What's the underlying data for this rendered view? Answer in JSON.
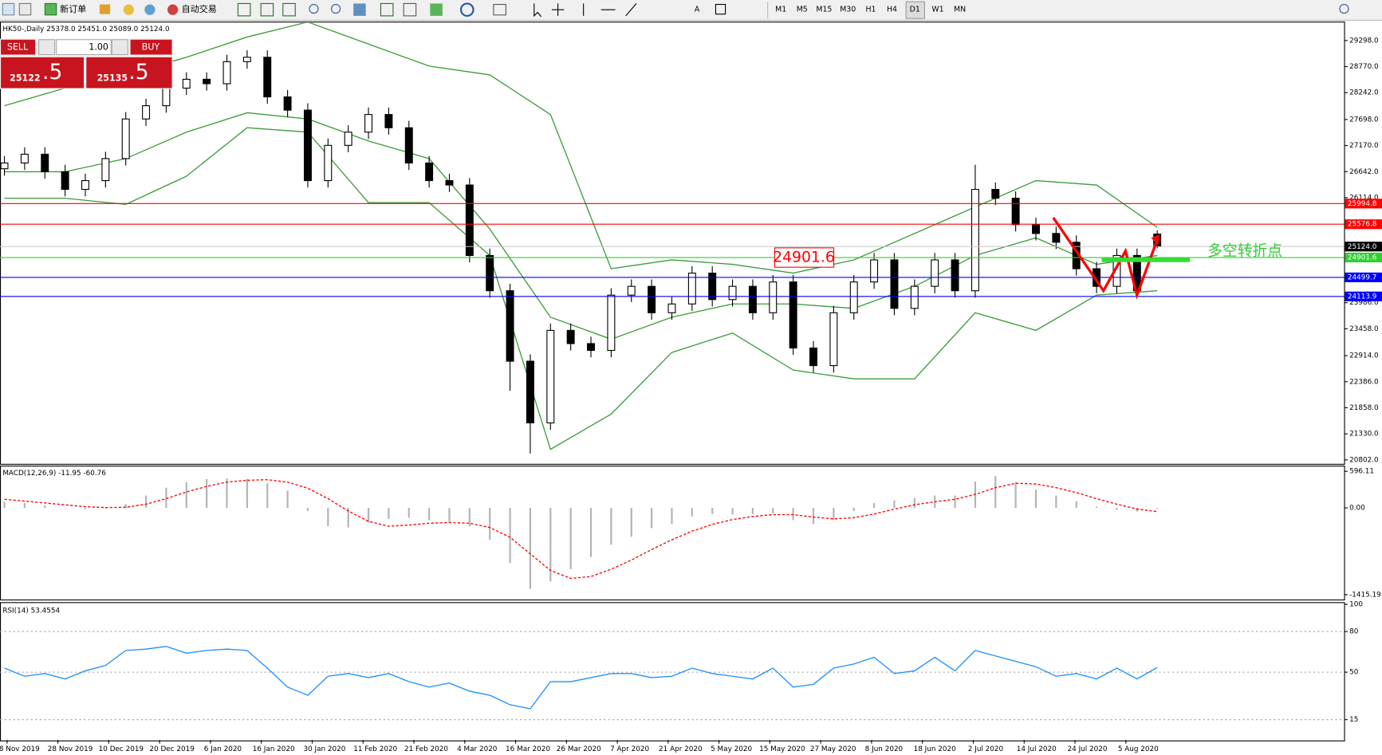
{
  "toolbar": {
    "new_order": "新订单",
    "auto_trading": "自动交易",
    "timeframes": [
      "M1",
      "M5",
      "M15",
      "M30",
      "H1",
      "H4",
      "D1",
      "W1",
      "MN"
    ]
  },
  "trade_panel": {
    "sell": {
      "label": "SELL",
      "big": 25122,
      "small": ".5"
    },
    "lot": "1.00",
    "buy": {
      "label": "BUY",
      "big": 25135,
      "small": ".5"
    }
  },
  "chart_data": [
    {
      "type": "candlestick",
      "title": "HK50-,Daily  25378.0 25451.0 25089.0 25124.0",
      "open": [
        26700,
        26817,
        26995,
        26639,
        26282,
        26460,
        26906,
        27709,
        27977,
        28334,
        28513,
        28423,
        28870,
        28959,
        28156,
        27888,
        26460,
        27174,
        27442,
        27799,
        27531,
        26817,
        26460,
        26371,
        24943,
        24229,
        22801,
        21552,
        23426,
        23158,
        23020,
        24140,
        24318,
        23783,
        23961,
        24586,
        24050,
        24318,
        23783,
        24407,
        23069,
        22712,
        23783,
        24407,
        24854,
        23872,
        24318,
        24854,
        24229,
        26282,
        26103,
        25568,
        25389,
        25211,
        24675,
        24318,
        24943,
        25378
      ],
      "high": [
        26957,
        27135,
        27135,
        26779,
        26600,
        27046,
        27849,
        28117,
        28474,
        28653,
        28653,
        29010,
        29099,
        29099,
        28296,
        28028,
        27314,
        27582,
        27939,
        27939,
        27671,
        26957,
        26600,
        26511,
        25083,
        24369,
        22941,
        23566,
        23566,
        23298,
        24280,
        24458,
        24458,
        24101,
        24726,
        24726,
        24458,
        24458,
        24547,
        24547,
        23209,
        23923,
        24547,
        24994,
        24994,
        24458,
        24994,
        24994,
        26781,
        26422,
        26243,
        25708,
        25529,
        25351,
        24815,
        25083,
        25083,
        25451
      ],
      "low": [
        26560,
        26677,
        26499,
        26142,
        26142,
        26320,
        26766,
        27569,
        27837,
        28194,
        28283,
        28283,
        28730,
        28016,
        27748,
        26320,
        26320,
        27034,
        27302,
        27391,
        26677,
        26320,
        26231,
        24803,
        24089,
        22200,
        20930,
        21412,
        23018,
        22880,
        22880,
        24000,
        23643,
        23643,
        23821,
        23910,
        23910,
        23643,
        23643,
        22929,
        22572,
        22572,
        23643,
        24267,
        23732,
        23732,
        24178,
        24089,
        24089,
        25963,
        25428,
        25249,
        25071,
        24535,
        24178,
        24178,
        24089,
        25089
      ],
      "close": [
        26817,
        26995,
        26639,
        26282,
        26460,
        26906,
        27709,
        27977,
        28334,
        28513,
        28423,
        28870,
        28959,
        28156,
        27888,
        26460,
        27174,
        27442,
        27799,
        27531,
        26817,
        26460,
        26371,
        24943,
        24229,
        22801,
        21552,
        23426,
        23158,
        23020,
        24140,
        24318,
        23783,
        23961,
        24586,
        24050,
        24318,
        23783,
        24407,
        23069,
        22712,
        23783,
        24407,
        24854,
        23872,
        24318,
        24854,
        24229,
        26282,
        26103,
        25568,
        25389,
        25211,
        24675,
        24318,
        24943,
        24229,
        25124
      ],
      "overlays": [
        {
          "color": "#3c9b3c",
          "values": [
            27977,
            28334,
            28602,
            28959,
            29369,
            29673,
            29227,
            28780,
            28602,
            27799,
            24675,
            24854,
            24764,
            24586,
            24854,
            25389,
            25925,
            26460,
            26371,
            25514
          ]
        },
        {
          "color": "#3c9b3c",
          "values": [
            26639,
            26639,
            26906,
            27442,
            27834,
            27709,
            27263,
            26906,
            25478,
            23693,
            23247,
            23693,
            23961,
            23961,
            23872,
            24318,
            24943,
            25300,
            24764,
            24943
          ]
        },
        {
          "color": "#3c9b3c",
          "values": [
            26103,
            26103,
            25978,
            26549,
            27531,
            27442,
            26014,
            26014,
            24943,
            21016,
            21730,
            22979,
            23372,
            22622,
            22444,
            22444,
            23783,
            23426,
            24140,
            24229
          ]
        }
      ],
      "hlines": [
        {
          "value": 25994.8,
          "color": "#ff0000"
        },
        {
          "value": 25576.8,
          "color": "#ff0000"
        },
        {
          "value": 25124.0,
          "label": "25124.0",
          "color": "#000000",
          "line_color": "#c8c8c8"
        },
        {
          "value": 24901.6,
          "color": "#32cd32"
        },
        {
          "value": 24499.7,
          "color": "#0000ff"
        },
        {
          "value": 24113.9,
          "color": "#0000ff"
        }
      ],
      "annotation": "多空转折点",
      "ylim": [
        20731,
        29655
      ],
      "yticks": [
        {
          "value": 29298,
          "label": "29298.0"
        },
        {
          "value": 28770,
          "label": "28770.0"
        },
        {
          "value": 28242,
          "label": "28242.0"
        },
        {
          "value": 27698,
          "label": "27698.0"
        },
        {
          "value": 27170,
          "label": "27170.0"
        },
        {
          "value": 26642,
          "label": "26642.0"
        },
        {
          "value": 26114,
          "label": "26114.0"
        },
        {
          "value": 23986,
          "label": "23986.0"
        },
        {
          "value": 23458,
          "label": "23458.0"
        },
        {
          "value": 22914,
          "label": "22914.0"
        },
        {
          "value": 22386,
          "label": "22386.0"
        },
        {
          "value": 21858,
          "label": "21858.0"
        },
        {
          "value": 21330,
          "label": "21330.0"
        },
        {
          "value": 20802,
          "label": "20802.0"
        }
      ],
      "xtick_labels": [
        "8 Nov 2019",
        "28 Nov 2019",
        "10 Dec 2019",
        "20 Dec 2019",
        "6 Jan 2020",
        "16 Jan 2020",
        "30 Jan 2020",
        "11 Feb 2020",
        "21 Feb 2020",
        "4 Mar 2020",
        "16 Mar 2020",
        "26 Mar 2020",
        "7 Apr 2020",
        "21 Apr 2020",
        "5 May 2020",
        "15 May 2020",
        "27 May 2020",
        "8 Jun 2020",
        "18 Jun 2020",
        "2 Jul 2020",
        "14 Jul 2020",
        "24 Jul 2020",
        "5 Aug 2020"
      ]
    },
    {
      "type": "macd",
      "title": "MACD(12,26,9) -11.95 -60.76",
      "series": [
        {
          "color": "#b4b4b4",
          "values": [
            100,
            80,
            40,
            0,
            -20,
            -10,
            60,
            200,
            330,
            420,
            470,
            480,
            470,
            400,
            280,
            -50,
            -300,
            -320,
            -240,
            -180,
            -160,
            -200,
            -230,
            -300,
            -520,
            -900,
            -1320,
            -1200,
            -1000,
            -800,
            -600,
            -470,
            -330,
            -260,
            -140,
            -100,
            -110,
            -100,
            -90,
            -200,
            -260,
            -200,
            -50,
            80,
            120,
            160,
            200,
            200,
            430,
            520,
            420,
            300,
            200,
            110,
            20,
            -30,
            -60,
            -11.95
          ]
        },
        {
          "color": "#ff0000",
          "values": [
            140,
            110,
            80,
            50,
            20,
            5,
            10,
            60,
            150,
            260,
            350,
            420,
            450,
            460,
            420,
            320,
            150,
            -50,
            -220,
            -300,
            -280,
            -250,
            -240,
            -250,
            -320,
            -480,
            -750,
            -1020,
            -1150,
            -1120,
            -1000,
            -850,
            -680,
            -520,
            -380,
            -270,
            -190,
            -140,
            -110,
            -110,
            -150,
            -180,
            -160,
            -100,
            -20,
            50,
            100,
            140,
            220,
            330,
            400,
            390,
            330,
            250,
            150,
            60,
            -20,
            -60.76
          ]
        }
      ],
      "ylim": [
        -1487,
        668
      ],
      "yticks": [
        596.11,
        {
          "value": 0,
          "label": "0.00"
        },
        -1415.19
      ]
    },
    {
      "type": "line",
      "title": "RSI(14) 53.4554",
      "color": "#1e90ff",
      "level_lines": true,
      "values": [
        53,
        47,
        49,
        45,
        51,
        55,
        66,
        67,
        69,
        64,
        66,
        67,
        66,
        53,
        39,
        33,
        47,
        49,
        46,
        49,
        43,
        39,
        42,
        36,
        33,
        26,
        23,
        43,
        43,
        46,
        49,
        49,
        46,
        47,
        53,
        49,
        47,
        45,
        53,
        39,
        41,
        53,
        56,
        61,
        49,
        51,
        61,
        51,
        66,
        62,
        58,
        54,
        47,
        49,
        45,
        53,
        45,
        53.4554
      ],
      "ylim": [
        0,
        100
      ],
      "yticks": [
        100,
        80,
        50,
        15
      ]
    }
  ]
}
